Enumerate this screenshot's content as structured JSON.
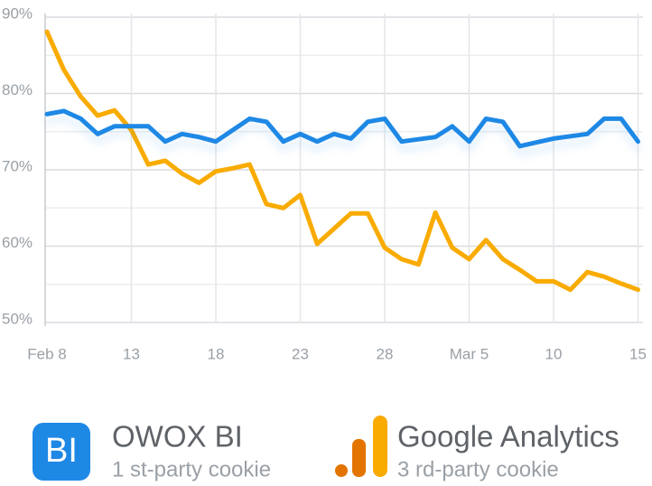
{
  "chart_data": {
    "type": "line",
    "categories": [
      "Feb 8",
      null,
      null,
      null,
      null,
      "13",
      null,
      null,
      null,
      null,
      "18",
      null,
      null,
      null,
      null,
      "23",
      null,
      null,
      null,
      null,
      "28",
      null,
      null,
      null,
      null,
      "Mar 5",
      null,
      null,
      null,
      null,
      "10",
      null,
      null,
      null,
      null,
      "15"
    ],
    "ylim": [
      50,
      90
    ],
    "yticks": [
      {
        "value": 50,
        "label": "50%"
      },
      {
        "value": 60,
        "label": "60%"
      },
      {
        "value": 70,
        "label": "70%"
      },
      {
        "value": 80,
        "label": "80%"
      },
      {
        "value": 90,
        "label": "90%"
      }
    ],
    "yminor": [
      55,
      65,
      75,
      85
    ],
    "grid": true,
    "series": [
      {
        "name": "OWOX BI",
        "description": "1 st-party cookie",
        "icon_text": "BI",
        "color": "#1e88e5",
        "values": [
          77.3,
          77.7,
          76.7,
          74.7,
          75.7,
          75.7,
          75.7,
          73.7,
          74.7,
          74.3,
          73.7,
          75.2,
          76.7,
          76.3,
          73.7,
          74.7,
          73.7,
          74.7,
          74.1,
          76.3,
          76.7,
          73.7,
          74.0,
          74.3,
          75.7,
          73.7,
          76.7,
          76.3,
          73.1,
          73.6,
          74.1,
          74.4,
          74.7,
          76.7,
          76.7,
          73.7
        ]
      },
      {
        "name": "Google Analytics",
        "description": "3 rd-party cookie",
        "color": "#f9ab00",
        "values": [
          88.1,
          83.1,
          79.6,
          77.1,
          77.8,
          75.2,
          70.7,
          71.2,
          69.5,
          68.3,
          69.8,
          70.2,
          70.7,
          65.5,
          65.0,
          66.7,
          60.3,
          62.3,
          64.3,
          64.3,
          59.8,
          58.3,
          57.6,
          64.4,
          59.8,
          58.3,
          60.8,
          58.3,
          56.9,
          55.4,
          55.4,
          54.3,
          56.6,
          56.0,
          55.1,
          54.3
        ]
      }
    ]
  }
}
